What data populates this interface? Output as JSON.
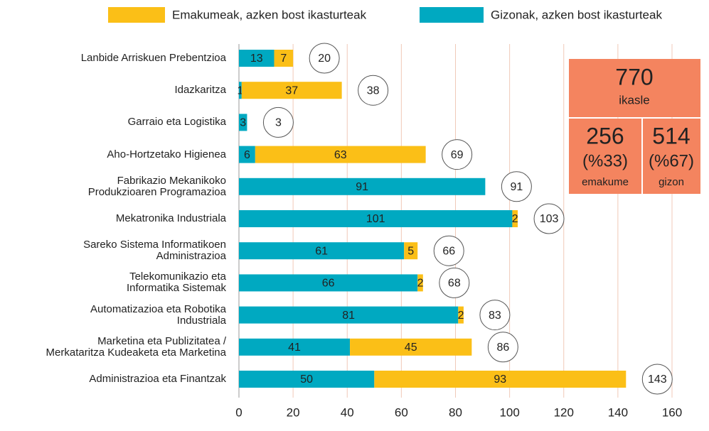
{
  "chart_data": {
    "type": "stacked-barh",
    "categories": [
      "Lanbide Arriskuen Prebentzioa",
      "Idazkaritza",
      "Garraio eta Logistika",
      "Aho-Hortzetako Higienea",
      "Fabrikazio Mekanikoko\nProdukzioaren Programazioa",
      "Mekatronika Industriala",
      "Sareko Sistema Informatikoen\nAdministrazioa",
      "Telekomunikazio eta\nInformatika Sistemak",
      "Automatizazioa eta Robotika\nIndustriala",
      "Marketina eta Publizitatea /\nMerkataritza Kudeaketa eta Marketina",
      "Administrazioa eta Finantzak"
    ],
    "series": [
      {
        "name": "Emakumeak, azken bost ikasturteak",
        "color": "#fbbf17",
        "values": [
          7,
          37,
          0,
          63,
          0,
          2,
          5,
          2,
          2,
          45,
          93
        ]
      },
      {
        "name": "Gizonak, azken bost ikasturteak",
        "color": "#00a9c1",
        "values": [
          13,
          1,
          3,
          6,
          91,
          101,
          61,
          66,
          81,
          41,
          50
        ]
      }
    ],
    "totals": [
      20,
      38,
      3,
      69,
      91,
      103,
      66,
      68,
      83,
      86,
      143
    ],
    "xlim": [
      0,
      170
    ],
    "xticks": [
      0,
      20,
      40,
      60,
      80,
      100,
      120,
      140,
      160
    ],
    "grid": true,
    "summary": {
      "total": "770",
      "total_label": "ikasle",
      "women": "256",
      "women_pct": "(%33)",
      "women_label": "emakume",
      "men": "514",
      "men_pct": "(%67)",
      "men_label": "gizon",
      "color": "#f4845f"
    }
  }
}
